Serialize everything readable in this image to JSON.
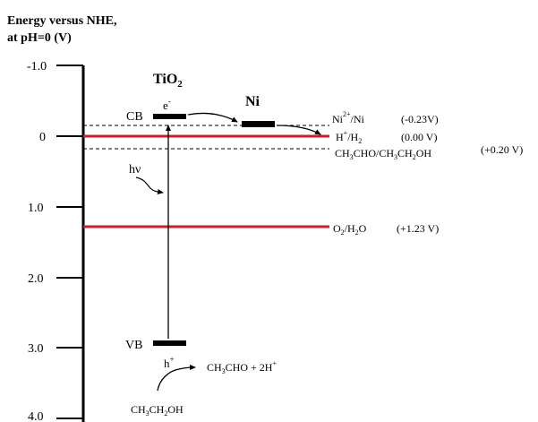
{
  "title": {
    "line1": "Energy versus NHE,",
    "line2": "at pH=0 (V)"
  },
  "axis": {
    "ticks": [
      "-1.0",
      "0",
      "1.0",
      "2.0",
      "3.0",
      "4.0"
    ]
  },
  "tio2": {
    "label_main": "TiO",
    "label_sub": "2",
    "cb_label": "CB",
    "vb_label": "VB",
    "electron": "e",
    "electron_sup": "-",
    "hole": "h",
    "hole_sup": "+",
    "hv": "hν"
  },
  "ni": {
    "label": "Ni"
  },
  "levels": [
    {
      "label_html": "Ni2+/Ni",
      "potential": "(-0.23V)"
    },
    {
      "label_html": "H+/H2",
      "potential": "(0.00 V)"
    },
    {
      "label_html": "CH3CHO/CH3CH2OH",
      "potential": "(+0.20 V)"
    },
    {
      "label_html": "O2/H2O",
      "potential": "(+1.23 V)"
    }
  ],
  "reaction": {
    "reactant": "CH3CH2OH",
    "product": "CH3CHO + 2H+"
  },
  "colors": {
    "red_level": "#c8232c",
    "line": "#000000"
  }
}
